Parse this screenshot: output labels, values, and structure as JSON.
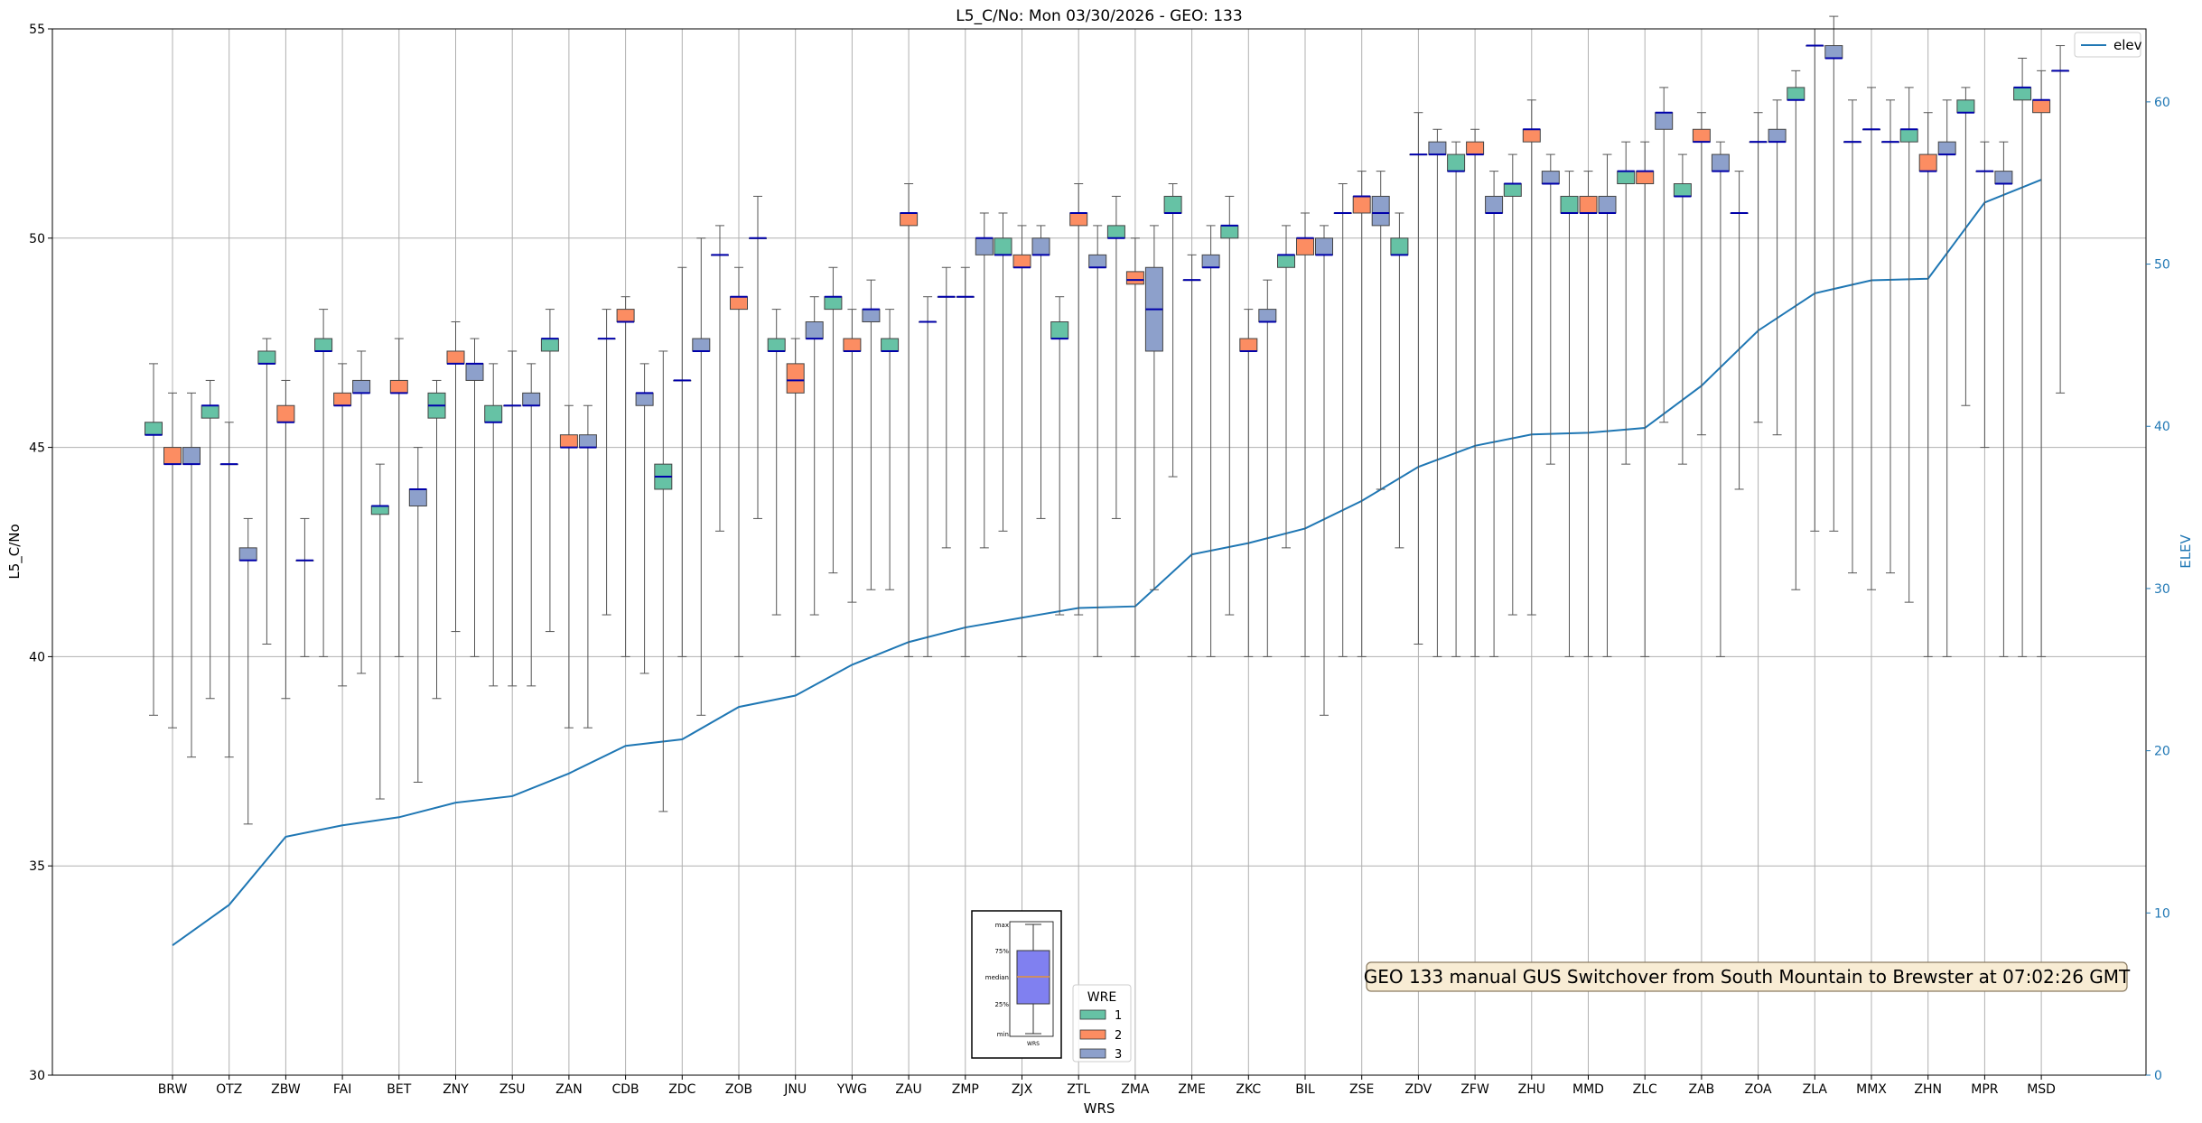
{
  "chart_data": {
    "type": "boxplot",
    "title": "L5_C/No: Mon 03/30/2026 - GEO: 133",
    "xlabel": "WRS",
    "ylabel": "L5_C/No",
    "y2label": "ELEV",
    "ylim": [
      30,
      55
    ],
    "y2lim": [
      0,
      64.5
    ],
    "yticks": [
      "30",
      "35",
      "40",
      "45",
      "50",
      "55"
    ],
    "y2ticks": [
      "0",
      "10",
      "20",
      "30",
      "40",
      "50",
      "60"
    ],
    "grid": true,
    "categories": [
      "BRW",
      "OTZ",
      "ZBW",
      "FAI",
      "BET",
      "ZNY",
      "ZSU",
      "ZAN",
      "CDB",
      "ZDC",
      "ZOB",
      "JNU",
      "YWG",
      "ZAU",
      "ZMP",
      "ZJX",
      "ZTL",
      "ZMA",
      "ZME",
      "ZKC",
      "BIL",
      "ZSE",
      "ZDV",
      "ZFW",
      "ZHU",
      "MMD",
      "ZLC",
      "ZAB",
      "ZOA",
      "ZLA",
      "MMX",
      "ZHN",
      "MPR",
      "MSD"
    ],
    "series": [
      {
        "name": "1",
        "color": "#66c2a5",
        "boxes": [
          [
            38.6,
            45.3,
            45.3,
            45.6,
            47.0
          ],
          [
            39.0,
            45.7,
            46.0,
            46.0,
            46.6
          ],
          [
            40.3,
            47.0,
            47.0,
            47.3,
            47.6
          ],
          [
            40.0,
            47.3,
            47.3,
            47.6,
            48.3
          ],
          [
            36.6,
            43.4,
            43.6,
            43.6,
            44.6
          ],
          [
            39.0,
            45.7,
            46.0,
            46.3,
            46.6
          ],
          [
            39.3,
            45.6,
            45.6,
            46.0,
            47.0
          ],
          [
            40.6,
            47.3,
            47.6,
            47.6,
            48.3
          ],
          [
            41.0,
            47.6,
            47.6,
            47.6,
            48.3
          ],
          [
            36.3,
            44.0,
            44.3,
            44.6,
            47.3
          ],
          [
            43.0,
            49.6,
            49.6,
            49.6,
            50.3
          ],
          [
            41.0,
            47.3,
            47.3,
            47.6,
            48.3
          ],
          [
            42.0,
            48.3,
            48.6,
            48.6,
            49.3
          ],
          [
            41.6,
            47.3,
            47.3,
            47.6,
            48.3
          ],
          [
            42.6,
            48.6,
            48.6,
            48.6,
            49.3
          ],
          [
            43.0,
            49.6,
            49.6,
            50.0,
            50.6
          ],
          [
            41.0,
            47.6,
            47.6,
            48.0,
            48.6
          ],
          [
            43.3,
            50.0,
            50.0,
            50.3,
            51.0
          ],
          [
            44.3,
            50.6,
            50.6,
            51.0,
            51.3
          ],
          [
            41.0,
            50.0,
            50.3,
            50.3,
            51.0
          ],
          [
            42.6,
            49.3,
            49.6,
            49.6,
            50.3
          ],
          [
            40.0,
            50.6,
            50.6,
            50.6,
            51.3
          ],
          [
            42.6,
            49.6,
            49.6,
            50.0,
            50.6
          ],
          [
            40.0,
            51.6,
            51.6,
            52.0,
            52.3
          ],
          [
            41.0,
            51.0,
            51.3,
            51.3,
            52.0
          ],
          [
            40.0,
            50.6,
            50.6,
            51.0,
            51.6
          ],
          [
            44.6,
            51.3,
            51.6,
            51.6,
            52.3
          ],
          [
            44.6,
            51.0,
            51.0,
            51.3,
            52.0
          ],
          [
            44.0,
            50.6,
            50.6,
            50.6,
            51.6
          ],
          [
            41.6,
            53.3,
            53.3,
            53.6,
            54.0
          ],
          [
            42.0,
            52.3,
            52.3,
            52.3,
            53.3
          ],
          [
            41.3,
            52.3,
            52.6,
            52.6,
            53.6
          ],
          [
            46.0,
            53.0,
            53.0,
            53.3,
            53.6
          ],
          [
            40.0,
            53.3,
            53.6,
            53.6,
            54.3
          ]
        ]
      },
      {
        "name": "2",
        "color": "#fc8d62",
        "boxes": [
          [
            38.3,
            44.6,
            44.6,
            45.0,
            46.3
          ],
          [
            37.6,
            44.6,
            44.6,
            44.6,
            45.6
          ],
          [
            39.0,
            45.6,
            45.6,
            46.0,
            46.6
          ],
          [
            39.3,
            46.0,
            46.0,
            46.3,
            47.0
          ],
          [
            40.0,
            46.3,
            46.3,
            46.6,
            47.6
          ],
          [
            40.6,
            47.0,
            47.0,
            47.3,
            48.0
          ],
          [
            39.3,
            46.0,
            46.0,
            46.0,
            47.3
          ],
          [
            38.3,
            45.0,
            45.0,
            45.3,
            46.0
          ],
          [
            40.0,
            48.0,
            48.0,
            48.3,
            48.6
          ],
          [
            40.0,
            46.6,
            46.6,
            46.6,
            49.3
          ],
          [
            40.0,
            48.3,
            48.6,
            48.6,
            49.3
          ],
          [
            40.0,
            46.3,
            46.6,
            47.0,
            47.6
          ],
          [
            41.3,
            47.3,
            47.3,
            47.6,
            48.3
          ],
          [
            40.0,
            50.3,
            50.6,
            50.6,
            51.3
          ],
          [
            40.0,
            48.6,
            48.6,
            48.6,
            49.3
          ],
          [
            40.0,
            49.3,
            49.3,
            49.6,
            50.3
          ],
          [
            41.0,
            50.3,
            50.6,
            50.6,
            51.3
          ],
          [
            40.0,
            48.9,
            49.0,
            49.2,
            50.0
          ],
          [
            40.0,
            49.0,
            49.0,
            49.0,
            49.6
          ],
          [
            40.0,
            47.3,
            47.3,
            47.6,
            48.3
          ],
          [
            40.0,
            49.6,
            50.0,
            50.0,
            50.6
          ],
          [
            40.0,
            50.6,
            51.0,
            51.0,
            51.6
          ],
          [
            40.3,
            52.0,
            52.0,
            52.0,
            53.0
          ],
          [
            40.0,
            52.0,
            52.0,
            52.3,
            52.6
          ],
          [
            41.0,
            52.3,
            52.6,
            52.6,
            53.3
          ],
          [
            40.0,
            50.6,
            50.6,
            51.0,
            51.6
          ],
          [
            40.0,
            51.3,
            51.6,
            51.6,
            52.3
          ],
          [
            45.3,
            52.3,
            52.3,
            52.6,
            53.0
          ],
          [
            45.6,
            52.3,
            52.3,
            52.3,
            53.0
          ],
          [
            43.0,
            54.6,
            54.6,
            54.6,
            55.0
          ],
          [
            41.6,
            52.6,
            52.6,
            52.6,
            53.6
          ],
          [
            40.0,
            51.6,
            51.6,
            52.0,
            53.0
          ],
          [
            45.0,
            51.6,
            51.6,
            51.6,
            52.3
          ],
          [
            40.0,
            53.0,
            53.3,
            53.3,
            54.0
          ]
        ]
      },
      {
        "name": "3",
        "color": "#8da0cb",
        "boxes": [
          [
            37.6,
            44.6,
            44.6,
            45.0,
            46.3
          ],
          [
            36.0,
            42.3,
            42.3,
            42.6,
            43.3
          ],
          [
            40.0,
            42.3,
            42.3,
            42.3,
            43.3
          ],
          [
            39.6,
            46.3,
            46.3,
            46.6,
            47.3
          ],
          [
            37.0,
            43.6,
            44.0,
            44.0,
            45.0
          ],
          [
            40.0,
            46.6,
            47.0,
            47.0,
            47.6
          ],
          [
            39.3,
            46.0,
            46.0,
            46.3,
            47.0
          ],
          [
            38.3,
            45.0,
            45.0,
            45.3,
            46.0
          ],
          [
            39.6,
            46.0,
            46.3,
            46.3,
            47.0
          ],
          [
            38.6,
            47.3,
            47.3,
            47.6,
            50.0
          ],
          [
            43.3,
            50.0,
            50.0,
            50.0,
            51.0
          ],
          [
            41.0,
            47.6,
            47.6,
            48.0,
            48.6
          ],
          [
            41.6,
            48.0,
            48.3,
            48.3,
            49.0
          ],
          [
            40.0,
            48.0,
            48.0,
            48.0,
            48.6
          ],
          [
            42.6,
            49.6,
            50.0,
            50.0,
            50.6
          ],
          [
            43.3,
            49.6,
            49.6,
            50.0,
            50.3
          ],
          [
            40.0,
            49.3,
            49.3,
            49.6,
            50.3
          ],
          [
            41.6,
            47.3,
            48.3,
            49.3,
            50.3
          ],
          [
            40.0,
            49.3,
            49.3,
            49.6,
            50.3
          ],
          [
            40.0,
            48.0,
            48.0,
            48.3,
            49.0
          ],
          [
            38.6,
            49.6,
            49.6,
            50.0,
            50.3
          ],
          [
            44.0,
            50.3,
            50.6,
            51.0,
            51.6
          ],
          [
            40.0,
            52.0,
            52.0,
            52.3,
            52.6
          ],
          [
            40.0,
            50.6,
            50.6,
            51.0,
            51.6
          ],
          [
            44.6,
            51.3,
            51.3,
            51.6,
            52.0
          ],
          [
            40.0,
            50.6,
            50.6,
            51.0,
            52.0
          ],
          [
            45.6,
            52.6,
            53.0,
            53.0,
            53.6
          ],
          [
            40.0,
            51.6,
            51.6,
            52.0,
            52.3
          ],
          [
            45.3,
            52.3,
            52.3,
            52.6,
            53.3
          ],
          [
            43.0,
            54.3,
            54.3,
            54.6,
            55.3
          ],
          [
            42.0,
            52.3,
            52.3,
            52.3,
            53.3
          ],
          [
            40.0,
            52.0,
            52.0,
            52.3,
            53.3
          ],
          [
            40.0,
            51.3,
            51.3,
            51.6,
            52.3
          ],
          [
            46.3,
            54.0,
            54.0,
            54.0,
            54.6
          ]
        ]
      }
    ],
    "elev": {
      "name": "elev",
      "color": "#1f77b4",
      "values": [
        8.0,
        10.5,
        14.7,
        15.4,
        15.9,
        16.8,
        17.2,
        18.6,
        20.3,
        20.7,
        22.7,
        23.4,
        25.3,
        26.7,
        27.6,
        28.2,
        28.8,
        28.9,
        32.1,
        32.8,
        33.7,
        35.4,
        37.5,
        38.8,
        39.5,
        39.6,
        39.9,
        42.5,
        45.9,
        48.2,
        49.0,
        49.1,
        53.8,
        55.2
      ]
    },
    "legend_top_right": "elev",
    "legend_wre": {
      "title": "WRE",
      "entries": [
        "1",
        "2",
        "3"
      ]
    },
    "key_box_labels": [
      "max",
      "75%",
      "median",
      "25%",
      "min",
      "WRS"
    ],
    "annotation": "GEO 133 manual GUS Switchover from South Mountain to Brewster at 07:02:26 GMT"
  }
}
